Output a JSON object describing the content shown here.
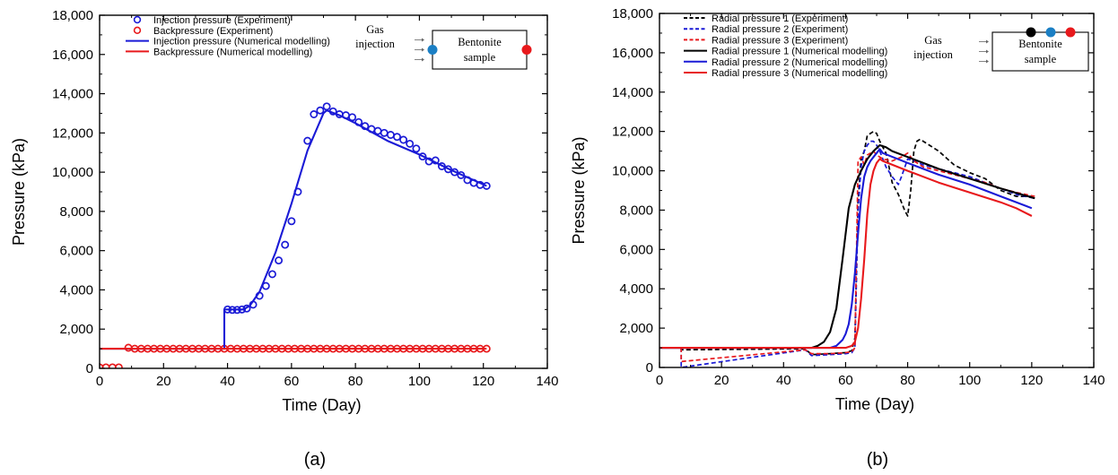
{
  "colors": {
    "blue": "#1a1ad6",
    "red": "#e8191c",
    "black": "#000000",
    "teal": "#1b7fc4"
  },
  "chart_data": [
    {
      "id": "a",
      "caption": "(a)",
      "type": "scatter",
      "xlabel": "Time (Day)",
      "ylabel": "Pressure (kPa)",
      "xlim": [
        0,
        140
      ],
      "ylim": [
        0,
        18000
      ],
      "xticks": [
        0,
        20,
        40,
        60,
        80,
        100,
        120,
        140
      ],
      "xtick_labels": [
        "0",
        "20",
        "40",
        "60",
        "80",
        "100",
        "120",
        "140"
      ],
      "yticks": [
        0,
        2000,
        4000,
        6000,
        8000,
        10000,
        12000,
        14000,
        16000,
        18000
      ],
      "ytick_labels": [
        "0",
        "2,000",
        "4,000",
        "6,000",
        "8,000",
        "10,000",
        "12,000",
        "14,000",
        "16,000",
        "18,000"
      ],
      "legend_position": "top-left",
      "schematic": {
        "left_label": [
          "Gas",
          "injection"
        ],
        "box_label": [
          "Bentonite",
          "sample"
        ],
        "dots": [
          "teal",
          "red"
        ]
      },
      "series": [
        {
          "name": "Injection pressure (Experiment)",
          "style": "circle",
          "color": "blue",
          "x": [
            40,
            41.5,
            43,
            44.5,
            46,
            48,
            50,
            52,
            54,
            56,
            58,
            60,
            62,
            65,
            67,
            69,
            71,
            73,
            75,
            77,
            79,
            81,
            83,
            85,
            87,
            89,
            91,
            93,
            95,
            97,
            99,
            101,
            103,
            105,
            107,
            109,
            111,
            113,
            115,
            117,
            119,
            121
          ],
          "y": [
            3000,
            2980,
            2980,
            3000,
            3050,
            3250,
            3700,
            4200,
            4800,
            5500,
            6300,
            7500,
            9000,
            11600,
            12950,
            13150,
            13350,
            13100,
            12950,
            12900,
            12800,
            12550,
            12350,
            12200,
            12100,
            12000,
            11900,
            11800,
            11650,
            11450,
            11200,
            10800,
            10550,
            10600,
            10300,
            10150,
            10000,
            9850,
            9600,
            9450,
            9350,
            9300
          ]
        },
        {
          "name": "Backpressure (Experiment)",
          "style": "circle",
          "color": "red",
          "x": [
            0,
            2,
            4,
            6,
            9,
            11,
            13,
            15,
            17,
            19,
            21,
            23,
            25,
            27,
            29,
            31,
            33,
            35,
            37,
            39,
            41,
            43,
            45,
            47,
            49,
            51,
            53,
            55,
            57,
            59,
            61,
            63,
            65,
            67,
            69,
            71,
            73,
            75,
            77,
            79,
            81,
            83,
            85,
            87,
            89,
            91,
            93,
            95,
            97,
            99,
            101,
            103,
            105,
            107,
            109,
            111,
            113,
            115,
            117,
            119,
            121
          ],
          "y": [
            50,
            50,
            50,
            50,
            1050,
            1000,
            1000,
            1000,
            1000,
            1000,
            1000,
            1000,
            1000,
            1000,
            1000,
            1000,
            1000,
            1000,
            1000,
            1000,
            1000,
            1000,
            1000,
            1000,
            1000,
            1000,
            1000,
            1000,
            1000,
            1000,
            1000,
            1000,
            1000,
            1000,
            1000,
            1000,
            1000,
            1000,
            1000,
            1000,
            1000,
            1000,
            1000,
            1000,
            1000,
            1000,
            1000,
            1000,
            1000,
            1000,
            1000,
            1000,
            1000,
            1000,
            1000,
            1000,
            1000,
            1000,
            1000,
            1000,
            1000
          ]
        },
        {
          "name": "Injection pressure (Numerical modelling)",
          "style": "solid",
          "color": "blue",
          "x": [
            0,
            39,
            39,
            45,
            47,
            50,
            55,
            60,
            65,
            70,
            71,
            75,
            80,
            90,
            100,
            110,
            121
          ],
          "y": [
            1000,
            1000,
            3000,
            3000,
            3200,
            3900,
            5900,
            8400,
            11100,
            13000,
            13150,
            12900,
            12500,
            11600,
            10900,
            10100,
            9300
          ]
        },
        {
          "name": "Backpressure (Numerical modelling)",
          "style": "solid",
          "color": "red",
          "x": [
            0,
            121
          ],
          "y": [
            1000,
            1000
          ]
        }
      ]
    },
    {
      "id": "b",
      "caption": "(b)",
      "type": "line",
      "xlabel": "Time (Day)",
      "ylabel": "Pressure (kPa)",
      "xlim": [
        0,
        140
      ],
      "ylim": [
        0,
        18000
      ],
      "xticks": [
        0,
        20,
        40,
        60,
        80,
        100,
        120,
        140
      ],
      "xtick_labels": [
        "0",
        "20",
        "40",
        "60",
        "80",
        "100",
        "120",
        "140"
      ],
      "yticks": [
        0,
        2000,
        4000,
        6000,
        8000,
        10000,
        12000,
        14000,
        16000,
        18000
      ],
      "ytick_labels": [
        "0",
        "2,000",
        "4,000",
        "6,000",
        "8,000",
        "10,000",
        "12,000",
        "14,000",
        "16,000",
        "18,000"
      ],
      "legend_position": "top-left",
      "schematic": {
        "left_label": [
          "Gas",
          "injection"
        ],
        "box_label": [
          "Bentonite",
          "sample"
        ],
        "dots": [
          "black",
          "teal",
          "red"
        ]
      },
      "series": [
        {
          "name": "Radial pressure 1 (Experiment)",
          "style": "dashed",
          "color": "black",
          "x": [
            0,
            7,
            7,
            47,
            49,
            55,
            60,
            62,
            63,
            64,
            65,
            66,
            67,
            68,
            69,
            70,
            71,
            72,
            73,
            74,
            75,
            77,
            79,
            80,
            81,
            82,
            83,
            84,
            85,
            87,
            90,
            95,
            100,
            105,
            110,
            115,
            121
          ],
          "y": [
            1000,
            1000,
            900,
            950,
            650,
            700,
            750,
            850,
            1500,
            8500,
            10600,
            11000,
            11800,
            11900,
            12000,
            11900,
            11500,
            11200,
            10900,
            10200,
            9400,
            8800,
            8000,
            7700,
            9000,
            11000,
            11500,
            11600,
            11500,
            11300,
            11000,
            10300,
            9900,
            9600,
            9000,
            8700,
            8700
          ]
        },
        {
          "name": "Radial pressure 2 (Experiment)",
          "style": "dashed",
          "color": "blue",
          "x": [
            0,
            7,
            7,
            47,
            49,
            55,
            60,
            62,
            63,
            64,
            65,
            66,
            67,
            68,
            69,
            70,
            71,
            72,
            73,
            75,
            77,
            78,
            80,
            82,
            85,
            90,
            95,
            100,
            105,
            110,
            115,
            121
          ],
          "y": [
            1000,
            1000,
            0,
            900,
            600,
            650,
            700,
            750,
            1000,
            8000,
            10200,
            11000,
            11300,
            11500,
            11500,
            11300,
            11000,
            10600,
            10200,
            9700,
            9300,
            9700,
            10600,
            10500,
            10300,
            10100,
            9900,
            9700,
            9400,
            9100,
            8800,
            8600
          ]
        },
        {
          "name": "Radial pressure 3 (Experiment)",
          "style": "dashed",
          "color": "red",
          "x": [
            0,
            7,
            7,
            47,
            49,
            55,
            60,
            62,
            63,
            64,
            65,
            66,
            67,
            68,
            69,
            70,
            72,
            75,
            78,
            80,
            82,
            85,
            90,
            95,
            100,
            105,
            110,
            115,
            121
          ],
          "y": [
            1000,
            1000,
            300,
            900,
            700,
            700,
            750,
            800,
            1000,
            10500,
            10700,
            10300,
            10800,
            10900,
            11000,
            10800,
            10600,
            10500,
            10700,
            10900,
            10500,
            10200,
            10000,
            9800,
            9600,
            9400,
            9100,
            8900,
            8700
          ]
        },
        {
          "name": "Radial pressure 1 (Numerical modelling)",
          "style": "solid",
          "color": "black",
          "x": [
            0,
            49,
            51,
            53,
            55,
            57,
            59,
            61,
            63,
            65,
            67,
            69,
            71,
            73,
            75,
            80,
            90,
            100,
            110,
            121
          ],
          "y": [
            1000,
            1000,
            1100,
            1300,
            1800,
            3000,
            5500,
            8100,
            9300,
            10000,
            10600,
            11000,
            11300,
            11200,
            11000,
            10700,
            10100,
            9600,
            9100,
            8600
          ]
        },
        {
          "name": "Radial pressure 2 (Numerical modelling)",
          "style": "solid",
          "color": "blue",
          "x": [
            0,
            55,
            57,
            59,
            60,
            61,
            62,
            63,
            64,
            65,
            66,
            67,
            68,
            69,
            70,
            71,
            72,
            80,
            90,
            100,
            110,
            120
          ],
          "y": [
            1000,
            1000,
            1100,
            1400,
            1700,
            2200,
            3200,
            4800,
            6800,
            8600,
            9700,
            10200,
            10500,
            10700,
            10900,
            11100,
            10900,
            10400,
            9800,
            9300,
            8700,
            8100
          ]
        },
        {
          "name": "Radial pressure 3 (Numerical modelling)",
          "style": "solid",
          "color": "red",
          "x": [
            0,
            60,
            62,
            63,
            64,
            65,
            66,
            67,
            68,
            69,
            70,
            71,
            72,
            80,
            90,
            100,
            110,
            115,
            120
          ],
          "y": [
            1000,
            1000,
            1100,
            1300,
            2000,
            3500,
            5500,
            7800,
            9300,
            10000,
            10400,
            10600,
            10500,
            10000,
            9400,
            8900,
            8400,
            8100,
            7700
          ]
        }
      ]
    }
  ]
}
